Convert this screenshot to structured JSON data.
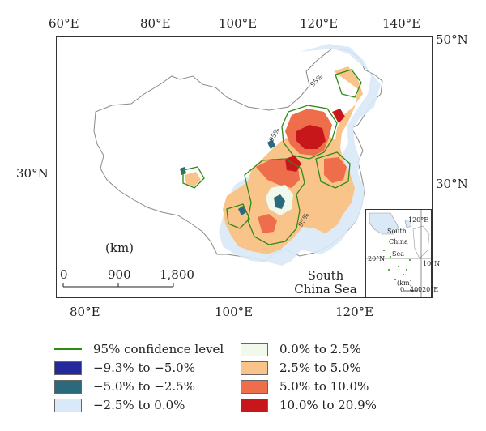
{
  "top_axis": [
    "60°E",
    "80°E",
    "100°E",
    "120°E",
    "140°E"
  ],
  "bottom_axis": [
    "80°E",
    "100°E",
    "120°E"
  ],
  "left_axis": [
    "30°N"
  ],
  "right_axis": [
    "50°N",
    "30°N"
  ],
  "scale": {
    "unit": "(km)",
    "ticks": [
      "0",
      "900",
      "1,800"
    ]
  },
  "place_labels": {
    "south_china_sea": "South China Sea"
  },
  "inset": {
    "lat": "20°N",
    "lat2": "10°N",
    "lon": "120°E",
    "lon2": "120°E",
    "sea_a": "South",
    "sea_b": "China",
    "sea_c": "Sea",
    "unit": "(km)",
    "s0": "0",
    "s1": "400"
  },
  "contour_label": "95%",
  "legend": {
    "line": {
      "label": "95% confidence level",
      "color": "#2e8b14"
    },
    "classes": [
      {
        "label": "−9.3% to −5.0%",
        "color": "#24289a"
      },
      {
        "label": "−5.0% to −2.5%",
        "color": "#2b6a7c"
      },
      {
        "label": "−2.5% to 0.0%",
        "color": "#d9e9f7"
      },
      {
        "label": "0.0% to 2.5%",
        "color": "#f1f9ec"
      },
      {
        "label": "2.5% to 5.0%",
        "color": "#f8c48a"
      },
      {
        "label": "5.0% to 10.0%",
        "color": "#ee6e4b"
      },
      {
        "label": "10.0% to 20.9%",
        "color": "#c8171b"
      }
    ]
  }
}
